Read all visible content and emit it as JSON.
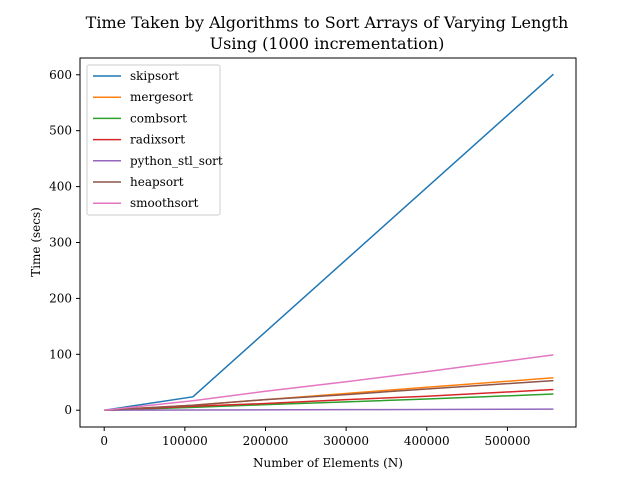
{
  "chart_data": {
    "type": "line",
    "title_line1": "Time Taken by Algorithms to Sort Arrays of Varying Length",
    "title_line2": "Using (1000 incrementation)",
    "xlabel": "Number of Elements (N)",
    "ylabel": "Time (secs)",
    "xlim": [
      -30000,
      585000
    ],
    "ylim": [
      -30,
      630
    ],
    "xticks": [
      0,
      100000,
      200000,
      300000,
      400000,
      500000
    ],
    "yticks": [
      0,
      100,
      200,
      300,
      400,
      500,
      600
    ],
    "grid": false,
    "legend_position": "top-left",
    "series": [
      {
        "name": "skipsort",
        "color": "#1f77b4",
        "points": [
          [
            0,
            0
          ],
          [
            110000,
            24
          ],
          [
            557000,
            601
          ]
        ]
      },
      {
        "name": "mergesort",
        "color": "#ff7f0e",
        "points": [
          [
            0,
            0
          ],
          [
            110000,
            9
          ],
          [
            200000,
            19
          ],
          [
            300000,
            30
          ],
          [
            400000,
            41
          ],
          [
            557000,
            58
          ]
        ]
      },
      {
        "name": "combsort",
        "color": "#2ca02c",
        "points": [
          [
            0,
            0
          ],
          [
            110000,
            5
          ],
          [
            200000,
            10
          ],
          [
            300000,
            15
          ],
          [
            400000,
            20
          ],
          [
            557000,
            29
          ]
        ]
      },
      {
        "name": "radixsort",
        "color": "#d62728",
        "points": [
          [
            0,
            0
          ],
          [
            110000,
            7
          ],
          [
            200000,
            12
          ],
          [
            300000,
            19
          ],
          [
            400000,
            25
          ],
          [
            557000,
            37
          ]
        ]
      },
      {
        "name": "python_stl_sort",
        "color": "#9467bd",
        "points": [
          [
            0,
            0
          ],
          [
            110000,
            0.5
          ],
          [
            300000,
            1
          ],
          [
            557000,
            2
          ]
        ]
      },
      {
        "name": "heapsort",
        "color": "#8c564b",
        "points": [
          [
            0,
            0
          ],
          [
            110000,
            9
          ],
          [
            200000,
            19
          ],
          [
            300000,
            28
          ],
          [
            400000,
            38
          ],
          [
            557000,
            53
          ]
        ]
      },
      {
        "name": "smoothsort",
        "color": "#e377c2",
        "points": [
          [
            0,
            0
          ],
          [
            110000,
            17
          ],
          [
            200000,
            34
          ],
          [
            300000,
            51
          ],
          [
            400000,
            69
          ],
          [
            557000,
            99
          ]
        ]
      }
    ]
  }
}
